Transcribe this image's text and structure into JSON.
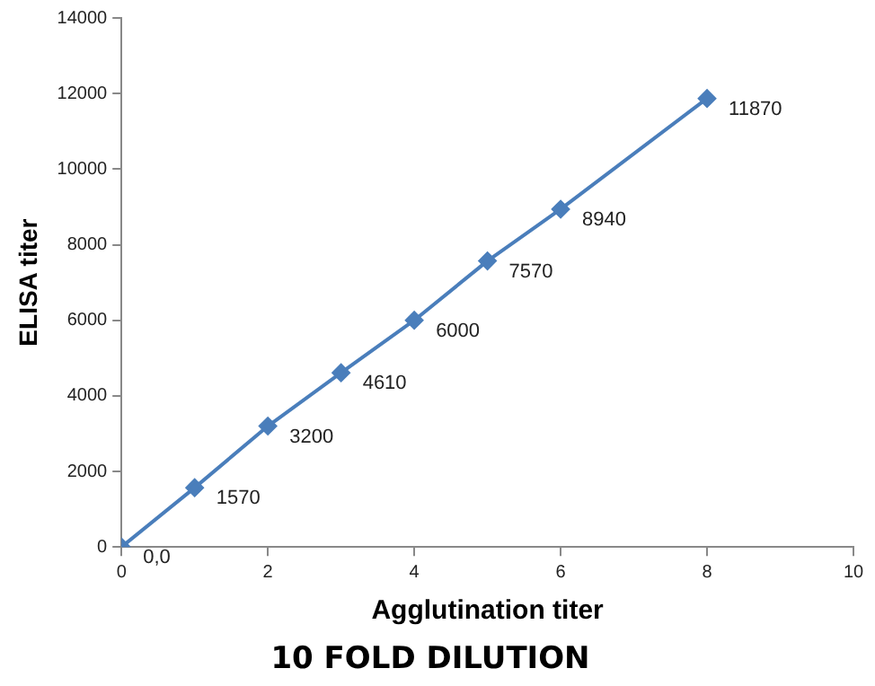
{
  "chart_data": {
    "type": "line",
    "title": "10 FOLD DILUTION",
    "xlabel": "Agglutination titer",
    "ylabel": "ELISA titer",
    "x": [
      0,
      1,
      2,
      3,
      4,
      5,
      6,
      8
    ],
    "series": [
      {
        "color": "#4a7ebb",
        "values": [
          0,
          1570,
          3200,
          4610,
          6000,
          7570,
          8940,
          11870
        ],
        "value_labels": [
          "0,0",
          "1570",
          "3200",
          "4610",
          "6000",
          "7570",
          "8940",
          "11870"
        ]
      }
    ],
    "xlim": [
      0,
      10
    ],
    "xticks": [
      0,
      2,
      4,
      6,
      8,
      10
    ],
    "ylim": [
      0,
      14000
    ],
    "yticks": [
      0,
      2000,
      4000,
      6000,
      8000,
      10000,
      12000,
      14000
    ],
    "grid": false,
    "legend": false,
    "marker": "diamond",
    "line_style": "solid"
  }
}
